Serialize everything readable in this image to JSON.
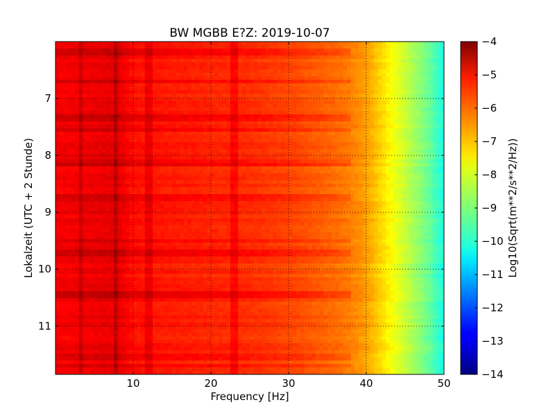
{
  "chart_data": {
    "type": "heatmap",
    "title": "BW MGBB E?Z: 2019-10-07",
    "xlabel": "Frequency [Hz]",
    "ylabel": "Lokalzeit (UTC + 2 Stunde)",
    "xlim": [
      0,
      50
    ],
    "ylim": [
      6.0,
      11.85
    ],
    "y_inverted": true,
    "grid": true,
    "grid_style": "dotted",
    "xticks": [
      10,
      20,
      30,
      40,
      50
    ],
    "xtick_labels": [
      "10",
      "20",
      "30",
      "40",
      "50"
    ],
    "yticks": [
      7,
      8,
      9,
      10,
      11
    ],
    "ytick_labels": [
      "7",
      "8",
      "9",
      "10",
      "11"
    ],
    "colormap": "jet",
    "colorbar": {
      "label": "Log10(Sqrt(m**2/s**2/Hz))",
      "min": -14,
      "max": -4,
      "ticks": [
        -4,
        -5,
        -6,
        -7,
        -8,
        -9,
        -10,
        -11,
        -12,
        -13,
        -14
      ],
      "tick_labels": [
        "−4",
        "−5",
        "−6",
        "−7",
        "−8",
        "−9",
        "−10",
        "−11",
        "−12",
        "−13",
        "−14"
      ]
    },
    "frequency_profile": {
      "freq_hz": [
        0,
        5,
        8,
        10,
        20,
        25,
        30,
        33,
        36,
        38,
        40,
        41,
        42,
        43,
        44,
        45,
        46,
        47,
        48,
        49,
        50
      ],
      "log10_amplitude": [
        -5.2,
        -5.1,
        -5.0,
        -5.4,
        -5.6,
        -5.7,
        -5.9,
        -6.1,
        -6.3,
        -6.5,
        -6.8,
        -7.1,
        -7.4,
        -7.7,
        -8.0,
        -8.3,
        -8.6,
        -8.9,
        -9.2,
        -9.6,
        -10.0
      ]
    },
    "spectral_lines_hz": [
      3.4,
      7.6,
      12.0,
      23.0
    ],
    "bright_bands_time": [
      6.2,
      6.7,
      7.35,
      7.55,
      8.15,
      8.75,
      9.5,
      9.7,
      10.45,
      11.55,
      11.7
    ]
  }
}
